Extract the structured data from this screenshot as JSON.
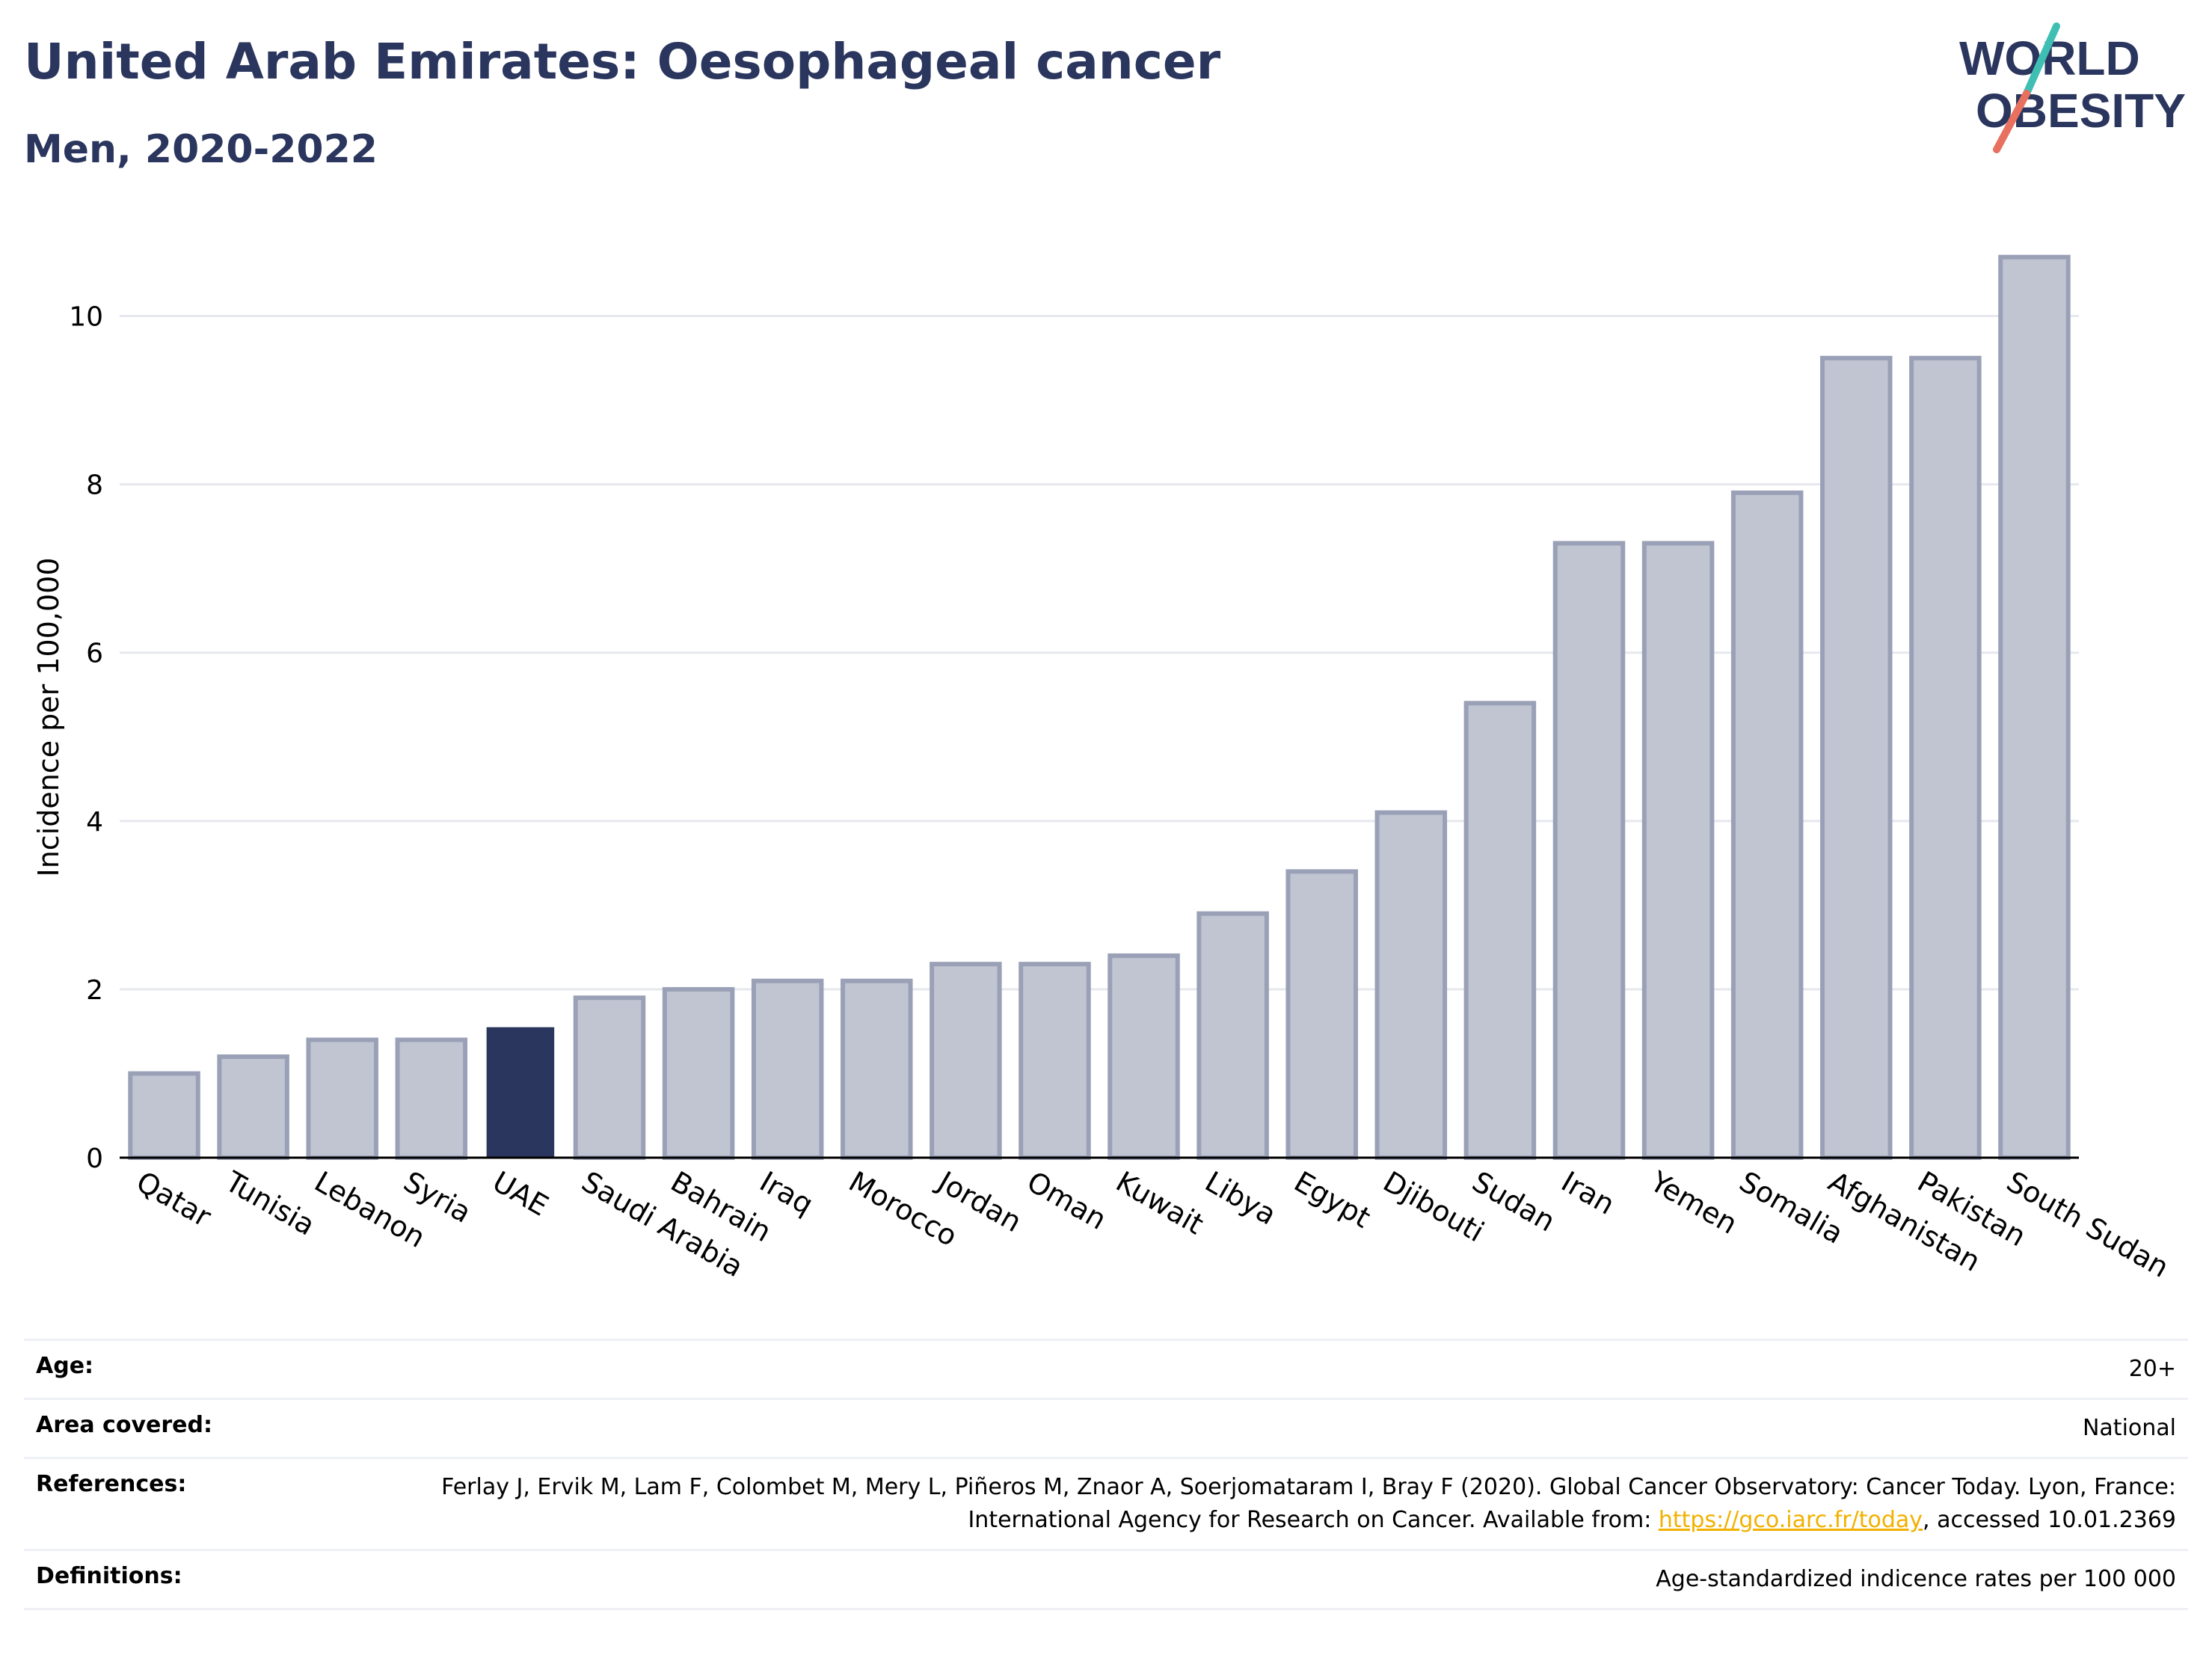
{
  "header": {
    "title": "United Arab Emirates: Oesophageal cancer",
    "subtitle": "Men, 2020-2022"
  },
  "logo": {
    "line1": "WORLD",
    "line2": "OBESITY",
    "colors": {
      "text": "#2b365e",
      "slash_teal": "#3fbfb4",
      "slash_coral": "#e8705f"
    }
  },
  "colors": {
    "bar": "#c1c5d2",
    "bar_stroke": "#9aa1b7",
    "highlight": "#2b365e",
    "grid": "#e6e8ee",
    "axis": "#000000"
  },
  "chart_data": {
    "type": "bar",
    "ylabel": "Incidence per 100,000",
    "ylim": [
      0,
      11
    ],
    "yticks": [
      0,
      2,
      4,
      6,
      8,
      10
    ],
    "grid": true,
    "highlight": "UAE",
    "categories": [
      "Qatar",
      "Tunisia",
      "Lebanon",
      "Syria",
      "UAE",
      "Saudi Arabia",
      "Bahrain",
      "Iraq",
      "Morocco",
      "Jordan",
      "Oman",
      "Kuwait",
      "Libya",
      "Egypt",
      "Djibouti",
      "Sudan",
      "Iran",
      "Yemen",
      "Somalia",
      "Afghanistan",
      "Pakistan",
      "South Sudan"
    ],
    "values": [
      1.0,
      1.2,
      1.4,
      1.4,
      1.55,
      1.9,
      2.0,
      2.1,
      2.1,
      2.3,
      2.3,
      2.4,
      2.9,
      3.4,
      4.1,
      5.4,
      7.3,
      7.3,
      7.9,
      9.5,
      9.5,
      10.7
    ]
  },
  "info": [
    {
      "key": "Age:",
      "value": "20+"
    },
    {
      "key": "Area covered:",
      "value": "National"
    },
    {
      "key": "References:",
      "value_before": "Ferlay J, Ervik M, Lam F, Colombet M, Mery L, Piñeros M, Znaor A, Soerjomataram I, Bray F (2020). Global Cancer Observatory: Cancer Today. Lyon, France: International Agency for Research on Cancer. Available from: ",
      "link": "https://gco.iarc.fr/today",
      "value_after": ", accessed 10.01.2369"
    },
    {
      "key": "Definitions:",
      "value": "Age-standardized indicence rates per 100 000"
    }
  ]
}
